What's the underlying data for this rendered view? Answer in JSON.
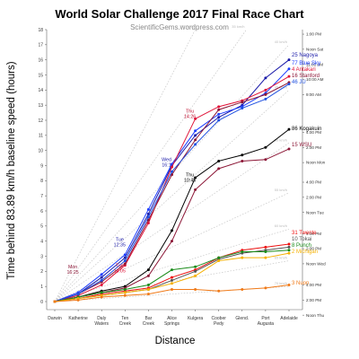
{
  "chart_data": {
    "type": "line",
    "title": "World Solar Challenge 2017 Final Race Chart",
    "subtitle": "ScientificGems.wordpress.com",
    "xlabel": "Distance",
    "ylabel": "Time behind 83.89 km/h baseline speed (hours)",
    "ylim": [
      0,
      18
    ],
    "y_ticks": [
      "0",
      "1",
      "2",
      "3",
      "4",
      "5",
      "6",
      "7",
      "8",
      "9",
      "10",
      "11",
      "12",
      "13",
      "14",
      "15",
      "16",
      "17",
      "18"
    ],
    "right_axis_ticks": [
      "Noon Thu",
      "2:00 PM",
      "4:00 PM",
      "Noon Wed",
      "2:00 PM",
      "4:00 PM",
      "Noon Tue",
      "2:00 PM",
      "4:00 PM",
      "Noon Mon",
      "2:00 PM",
      "4:00 PM",
      "9:00 AM",
      "10:00 AM",
      "11:00 AM",
      "Noon Sat",
      "1:00 PM"
    ],
    "right_axis_positions": [
      -0.9,
      0.1,
      1.1,
      2.5,
      3.5,
      4.5,
      5.9,
      6.9,
      7.9,
      9.2,
      10.2,
      11.2,
      13.7,
      14.7,
      15.7,
      16.7,
      17.7
    ],
    "categories": [
      "Darwin",
      "Katherine",
      "Daly Waters",
      "Tennant Creek",
      "Barrow Creek",
      "Alice Springs",
      "Kulgera",
      "Coober Pedy",
      "Glendambo",
      "Port Augusta",
      "Adelaide"
    ],
    "category_labels": [
      [
        "Darwin"
      ],
      [
        "Katherine"
      ],
      [
        "Daly",
        "Waters"
      ],
      [
        "Ten",
        "Creek"
      ],
      [
        "Bar",
        "Creek"
      ],
      [
        "Alice",
        "Springs"
      ],
      [
        "Kulgera"
      ],
      [
        "Coober",
        "Pedy"
      ],
      [
        "Glend."
      ],
      [
        "Port",
        "Augusta"
      ],
      [
        "Adelaide"
      ]
    ],
    "reference_lines": [
      {
        "label": "30 km/h",
        "slope": 3.0
      },
      {
        "label": "35 km/h",
        "slope": 2.2
      },
      {
        "label": "40 km/h",
        "slope": 1.7
      },
      {
        "label": "45 km/h",
        "slope": 1.4
      },
      {
        "label": "50 km/h",
        "slope": 1.05
      },
      {
        "label": "55 km/h",
        "slope": 0.72
      },
      {
        "label": "60 km/h",
        "slope": 0.48
      },
      {
        "label": "65 km/h",
        "slope": 0.27
      },
      {
        "label": "70 km/h",
        "slope": 0.1
      }
    ],
    "series": [
      {
        "name": "25 Nagoya",
        "color": "#1a1aa8",
        "values": [
          0,
          0.5,
          1.6,
          2.9,
          5.8,
          9.0,
          11.0,
          12.2,
          13.0,
          14.8,
          16.0
        ]
      },
      {
        "name": "77 Blue Sky",
        "color": "#1f3fff",
        "values": [
          0,
          0.6,
          1.8,
          3.1,
          6.1,
          9.1,
          11.3,
          12.4,
          12.9,
          13.8,
          15.4
        ]
      },
      {
        "name": "4 Antakari",
        "color": "#e0153a",
        "values": [
          0,
          0.4,
          1.1,
          2.4,
          5.2,
          8.9,
          12.1,
          12.9,
          13.3,
          14.0,
          14.9
        ]
      },
      {
        "name": "16 Stanford",
        "color": "#8b1535",
        "values": [
          0,
          0.5,
          1.3,
          2.5,
          5.4,
          8.4,
          10.7,
          12.7,
          13.2,
          13.7,
          14.5
        ]
      },
      {
        "name": "46 JU",
        "color": "#1e50e0",
        "values": [
          0,
          0.5,
          1.4,
          2.7,
          5.6,
          8.6,
          10.4,
          12.0,
          12.8,
          13.4,
          14.4
        ]
      },
      {
        "name": "86 Kogakuin",
        "color": "#000000",
        "values": [
          0,
          0.3,
          0.7,
          1.0,
          2.1,
          4.7,
          8.2,
          9.3,
          9.7,
          10.2,
          11.4
        ]
      },
      {
        "name": "15 WSU",
        "color": "#8b1535",
        "values": [
          0,
          0.3,
          0.6,
          0.9,
          1.7,
          4.0,
          7.4,
          8.8,
          9.3,
          9.4,
          10.1
        ]
      },
      {
        "name": "31 Twente",
        "color": "#ee1111",
        "values": [
          0,
          0.2,
          0.5,
          0.7,
          0.9,
          1.6,
          2.1,
          2.9,
          3.4,
          3.6,
          3.8
        ]
      },
      {
        "name": "10 Tokai",
        "color": "#555555",
        "values": [
          0,
          0.2,
          0.4,
          0.6,
          0.8,
          1.4,
          2.0,
          2.8,
          3.2,
          3.4,
          3.6
        ]
      },
      {
        "name": "8 Punch",
        "color": "#1b8c1b",
        "values": [
          0,
          0.3,
          0.6,
          0.8,
          1.1,
          2.1,
          2.3,
          2.9,
          3.3,
          3.3,
          3.4
        ]
      },
      {
        "name": "2 Michigan",
        "color": "#f5b000",
        "values": [
          0,
          0.2,
          0.4,
          0.6,
          0.8,
          1.2,
          1.7,
          2.7,
          2.9,
          2.9,
          3.2
        ]
      },
      {
        "name": "3 Nuon",
        "color": "#f07a18",
        "values": [
          0,
          0.1,
          0.3,
          0.4,
          0.5,
          0.8,
          0.8,
          0.7,
          0.8,
          0.9,
          1.1
        ]
      }
    ],
    "annotations": [
      {
        "lines": [
          "Thu",
          "14:26"
        ],
        "color": "#c01030",
        "x_index": 6,
        "y": 12.5
      },
      {
        "lines": [
          "Wed",
          "16:1"
        ],
        "color": "#1a1aa8",
        "x_index": 5,
        "y": 9.3
      },
      {
        "lines": [
          "Thu",
          "10:45"
        ],
        "color": "#000000",
        "x_index": 6,
        "y": 8.3
      },
      {
        "lines": [
          "Tue",
          "12:35"
        ],
        "color": "#1a1aa8",
        "x_index": 3,
        "y": 4.0
      },
      {
        "lines": [
          "Mon",
          "16:25"
        ],
        "color": "#8b1535",
        "x_index": 1,
        "y": 2.2
      },
      {
        "lines": [
          "Tue",
          "14:05"
        ],
        "color": "#e0153a",
        "x_index": 3,
        "y": 2.3
      }
    ]
  }
}
